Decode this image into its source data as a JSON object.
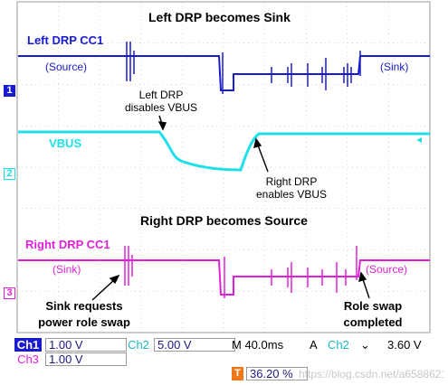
{
  "annotations": {
    "top_title": "Left DRP becomes Sink",
    "ch1_name": "Left DRP CC1",
    "ch1_source": "(Source)",
    "ch1_sink": "(Sink)",
    "left_drp_disables": [
      "Left DRP",
      "disables VBUS"
    ],
    "vbus_name": "VBUS",
    "right_drp_enables": [
      "Right DRP",
      "enables VBUS"
    ],
    "mid_title": "Right DRP becomes Source",
    "ch3_name": "Right DRP CC1",
    "ch3_sink": "(Sink)",
    "ch3_source": "(Source)",
    "sink_requests": [
      "Sink requests",
      "power role swap"
    ],
    "role_swap": [
      "Role swap",
      "completed"
    ]
  },
  "markers": {
    "ch1": "1",
    "ch2": "2",
    "ch3": "3"
  },
  "status": {
    "ch1_label": "Ch1",
    "ch1_scale": "1.00 V",
    "ch2_label": "Ch2",
    "ch2_scale": "5.00 V",
    "timebase": "M 40.0ms",
    "trigger_mode": "A",
    "trigger_channel": "Ch2",
    "trigger_slope": "⌄",
    "trigger_level": "3.60 V",
    "ch3_label": "Ch3",
    "ch3_scale": "1.00 V",
    "trigger_position": "36.20 %",
    "trigger_icon": "T"
  },
  "watermark": "https://blog.csdn.net/a6588621",
  "colors": {
    "ch1": "#1a1ad0",
    "ch2": "#1ee0e8",
    "ch3": "#e020d8",
    "grid": "#b0b0b0",
    "status_bg": "#b8d4ec"
  }
}
